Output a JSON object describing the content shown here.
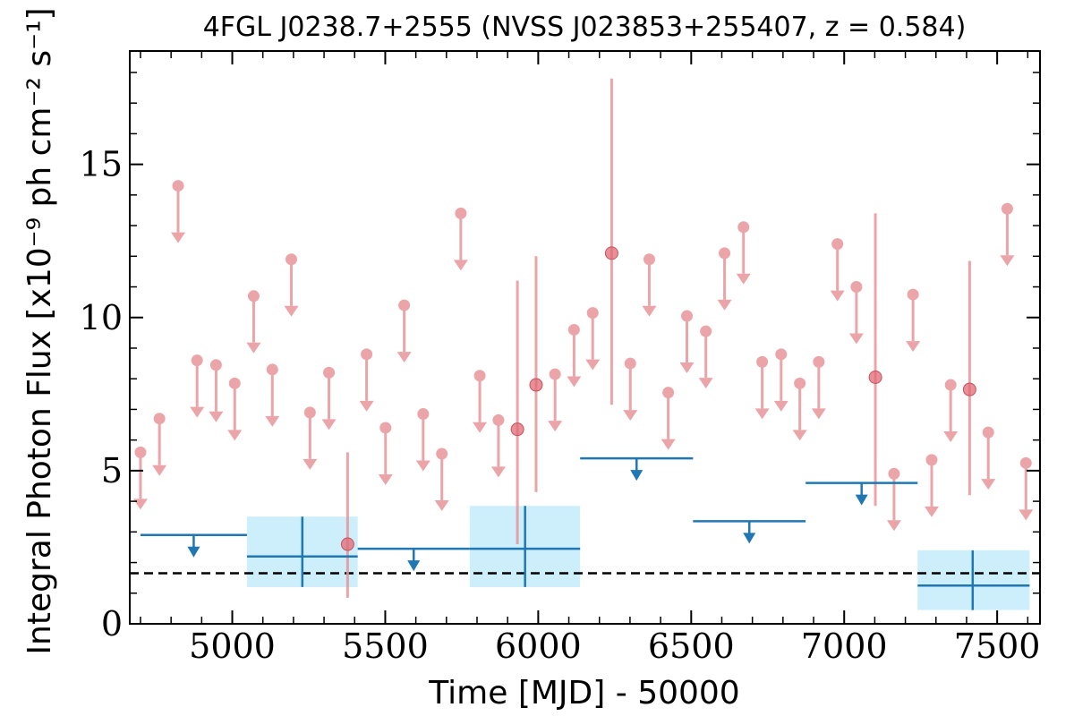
{
  "chart_data": {
    "type": "scatter",
    "title": "4FGL J0238.7+2555 (NVSS J023853+255407, z = 0.584)",
    "xlabel": "Time [MJD] - 50000",
    "ylabel": "Integral Photon Flux [x10⁻⁹ ph cm⁻² s⁻¹]",
    "xlim": [
      4665,
      7640
    ],
    "ylim": [
      0,
      18.7
    ],
    "x_ticks": [
      "5000",
      "5500",
      "6000",
      "6500",
      "7000",
      "7500"
    ],
    "y_ticks": [
      "0",
      "5",
      "10",
      "15"
    ],
    "grid": false,
    "average_flux_line": 1.65,
    "colors": {
      "short_bins": "#e8959a",
      "long_bins": "#1f77b4",
      "long_bins_error_box": "#cdeefb",
      "average_line": "#000000"
    },
    "series": [
      {
        "bin": "short",
        "upper_limits": [
          {
            "x": 4700,
            "y": 5.6
          },
          {
            "x": 4762,
            "y": 6.7
          },
          {
            "x": 4823,
            "y": 14.3
          },
          {
            "x": 4885,
            "y": 8.6
          },
          {
            "x": 4947,
            "y": 8.45
          },
          {
            "x": 5008,
            "y": 7.85
          },
          {
            "x": 5070,
            "y": 10.7
          },
          {
            "x": 5131,
            "y": 8.3
          },
          {
            "x": 5193,
            "y": 11.9
          },
          {
            "x": 5254,
            "y": 6.9
          },
          {
            "x": 5316,
            "y": 8.2
          },
          {
            "x": 5439,
            "y": 8.8
          },
          {
            "x": 5501,
            "y": 6.4
          },
          {
            "x": 5562,
            "y": 10.4
          },
          {
            "x": 5624,
            "y": 6.85
          },
          {
            "x": 5685,
            "y": 5.55
          },
          {
            "x": 5747,
            "y": 13.4
          },
          {
            "x": 5809,
            "y": 8.1
          },
          {
            "x": 5870,
            "y": 6.65
          },
          {
            "x": 6055,
            "y": 8.15
          },
          {
            "x": 6117,
            "y": 9.6
          },
          {
            "x": 6178,
            "y": 10.15
          },
          {
            "x": 6301,
            "y": 8.5
          },
          {
            "x": 6363,
            "y": 11.9
          },
          {
            "x": 6425,
            "y": 7.55
          },
          {
            "x": 6486,
            "y": 10.05
          },
          {
            "x": 6548,
            "y": 9.55
          },
          {
            "x": 6609,
            "y": 12.1
          },
          {
            "x": 6671,
            "y": 12.95
          },
          {
            "x": 6732,
            "y": 8.55
          },
          {
            "x": 6794,
            "y": 8.8
          },
          {
            "x": 6855,
            "y": 7.85
          },
          {
            "x": 6917,
            "y": 8.55
          },
          {
            "x": 6978,
            "y": 12.4
          },
          {
            "x": 7040,
            "y": 11.0
          },
          {
            "x": 7163,
            "y": 4.9
          },
          {
            "x": 7225,
            "y": 10.75
          },
          {
            "x": 7286,
            "y": 5.35
          },
          {
            "x": 7348,
            "y": 7.8
          },
          {
            "x": 7471,
            "y": 6.25
          },
          {
            "x": 7533,
            "y": 13.55
          },
          {
            "x": 7594,
            "y": 5.25
          }
        ],
        "detections": [
          {
            "x": 5377,
            "y": 2.6,
            "y_low": 0.85,
            "y_high": 5.6
          },
          {
            "x": 5932,
            "y": 6.35,
            "y_low": 2.6,
            "y_high": 11.2
          },
          {
            "x": 5993,
            "y": 7.8,
            "y_low": 4.3,
            "y_high": 12.0
          },
          {
            "x": 6240,
            "y": 12.1,
            "y_low": 7.15,
            "y_high": 17.8
          },
          {
            "x": 7102,
            "y": 8.05,
            "y_low": 3.85,
            "y_high": 13.4
          },
          {
            "x": 7410,
            "y": 7.65,
            "y_low": 4.2,
            "y_high": 11.85
          }
        ]
      },
      {
        "bin": "long",
        "upper_limits": [
          {
            "x_start": 4700,
            "x_end": 5048,
            "y": 2.9
          },
          {
            "x_start": 5410,
            "x_end": 5776,
            "y": 2.45
          },
          {
            "x_start": 6137,
            "x_end": 6506,
            "y": 5.4
          },
          {
            "x_start": 6506,
            "x_end": 6874,
            "y": 3.35
          },
          {
            "x_start": 6874,
            "x_end": 7240,
            "y": 4.6
          }
        ],
        "detections": [
          {
            "x": 5229,
            "x_start": 5048,
            "x_end": 5410,
            "y": 2.2,
            "y_low": 1.2,
            "y_high": 3.5
          },
          {
            "x": 5957,
            "x_start": 5776,
            "x_end": 6137,
            "y": 2.45,
            "y_low": 1.2,
            "y_high": 3.85
          },
          {
            "x": 7420,
            "x_start": 7240,
            "x_end": 7606,
            "y": 1.25,
            "y_low": 0.45,
            "y_high": 2.4
          }
        ]
      }
    ]
  }
}
